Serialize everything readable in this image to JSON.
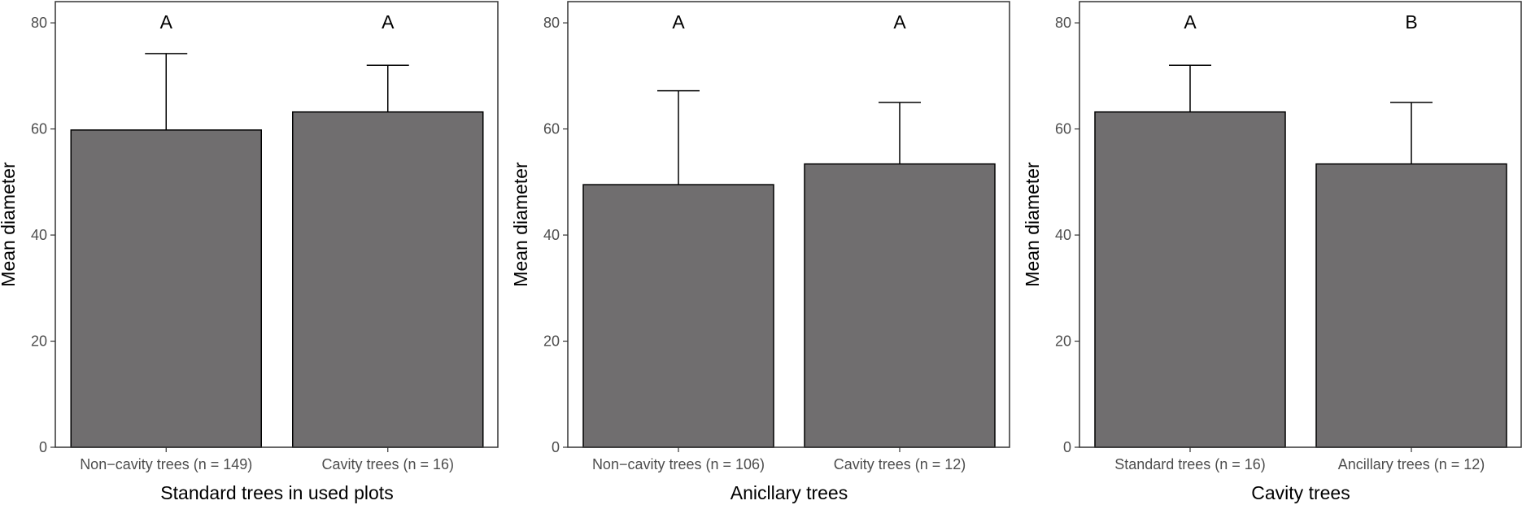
{
  "colors": {
    "bar_fill": "#706e6f",
    "bar_stroke": "#000000",
    "panel_border": "#333333",
    "tick_text": "#4d4d4d"
  },
  "chart_data": [
    {
      "type": "bar",
      "xlabel": "Standard trees in used plots",
      "ylabel": "Mean diameter",
      "ylim": [
        0,
        84
      ],
      "yticks": [
        0,
        20,
        40,
        60,
        80
      ],
      "grid": false,
      "categories": [
        "Non−cavity trees (n = 149)",
        "Cavity trees (n = 16)"
      ],
      "values": [
        59.8,
        63.2
      ],
      "error_upper": [
        74.2,
        72.0
      ],
      "letters": [
        "A",
        "A"
      ]
    },
    {
      "type": "bar",
      "xlabel": "Anicllary trees",
      "ylabel": "Mean diameter",
      "ylim": [
        0,
        84
      ],
      "yticks": [
        0,
        20,
        40,
        60,
        80
      ],
      "grid": false,
      "categories": [
        "Non−cavity trees (n = 106)",
        "Cavity trees (n = 12)"
      ],
      "values": [
        49.5,
        53.4
      ],
      "error_upper": [
        67.2,
        65.0
      ],
      "letters": [
        "A",
        "A"
      ]
    },
    {
      "type": "bar",
      "xlabel": "Cavity trees",
      "ylabel": "Mean diameter",
      "ylim": [
        0,
        84
      ],
      "yticks": [
        0,
        20,
        40,
        60,
        80
      ],
      "grid": false,
      "categories": [
        "Standard trees (n = 16)",
        "Ancillary trees (n = 12)"
      ],
      "values": [
        63.2,
        53.4
      ],
      "error_upper": [
        72.0,
        65.0
      ],
      "letters": [
        "A",
        "B"
      ]
    }
  ]
}
